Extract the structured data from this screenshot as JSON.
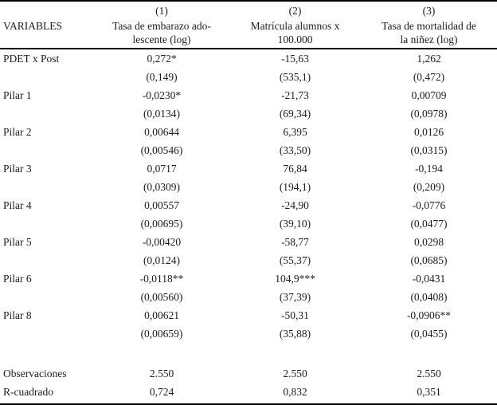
{
  "table": {
    "variables_label": "VARIABLES",
    "columns": [
      {
        "num": "(1)",
        "name_line1": "Tasa de embarazo ado-",
        "name_line2": "lescente (log)"
      },
      {
        "num": "(2)",
        "name_line1": "Matrícula alumnos x",
        "name_line2": "100.000"
      },
      {
        "num": "(3)",
        "name_line1": "Tasa de mortalidad de",
        "name_line2": "la niñez (log)"
      }
    ],
    "rows": [
      {
        "label": "PDET x Post",
        "coef": [
          "0,272*",
          "-15,63",
          "1,262"
        ],
        "se": [
          "(0,149)",
          "(535,1)",
          "(0,472)"
        ]
      },
      {
        "label": "Pilar 1",
        "coef": [
          "-0,0230*",
          "-21,73",
          "0,00709"
        ],
        "se": [
          "(0,0134)",
          "(69,34)",
          "(0,0978)"
        ]
      },
      {
        "label": "Pilar 2",
        "coef": [
          "0,00644",
          "6,395",
          "0,0126"
        ],
        "se": [
          "(0,00546)",
          "(33,50)",
          "(0,0315)"
        ]
      },
      {
        "label": "Pilar 3",
        "coef": [
          "0,0717",
          "76,84",
          "-0,194"
        ],
        "se": [
          "(0,0309)",
          "(194,1)",
          "(0,209)"
        ]
      },
      {
        "label": "Pilar 4",
        "coef": [
          "0,00557",
          "-24,90",
          "-0,0776"
        ],
        "se": [
          "(0,00695)",
          "(39,10)",
          "(0,0477)"
        ]
      },
      {
        "label": "Pilar 5",
        "coef": [
          "-0,00420",
          "-58,77",
          "0,0298"
        ],
        "se": [
          "(0,0124)",
          "(55,37)",
          "(0,0685)"
        ]
      },
      {
        "label": "Pilar 6",
        "coef": [
          "-0,0118**",
          "104,9***",
          "-0,0431"
        ],
        "se": [
          "(0,00560)",
          "(37,39)",
          "(0,0408)"
        ]
      },
      {
        "label": "Pilar 8",
        "coef": [
          "0,00621",
          "-50,31",
          "-0,0906**"
        ],
        "se": [
          "(0,00659)",
          "(35,88)",
          "(0,0455)"
        ]
      }
    ],
    "stats": [
      {
        "label": "Observaciones",
        "values": [
          "2.550",
          "2.550",
          "2.550"
        ]
      },
      {
        "label": "R-cuadrado",
        "values": [
          "0,724",
          "0,832",
          "0,351"
        ]
      }
    ]
  },
  "colors": {
    "text": "#1c1c1c",
    "rule": "#000000",
    "background": "#ffffff"
  }
}
